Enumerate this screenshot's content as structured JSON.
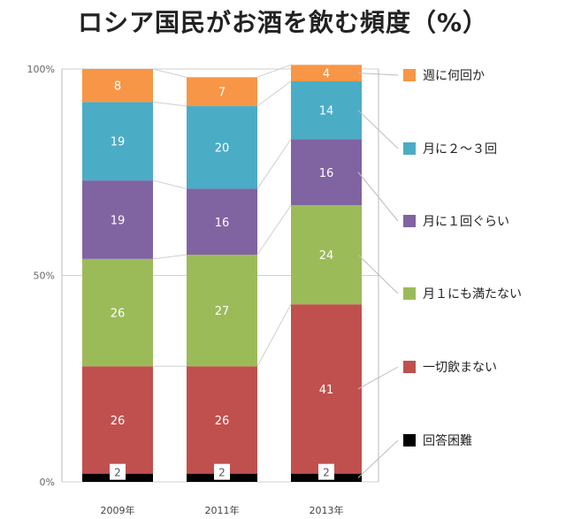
{
  "chart_data": {
    "type": "bar",
    "stacked": true,
    "title": "ロシア国民がお酒を飲む頻度（%）",
    "categories": [
      "2009年",
      "2011年",
      "2013年"
    ],
    "y_ticks": [
      "0%",
      "50%",
      "100%"
    ],
    "ylim": [
      0,
      100
    ],
    "legend_position": "right",
    "series": [
      {
        "name": "回答困難",
        "color": "#000000",
        "values": [
          2,
          2,
          2
        ]
      },
      {
        "name": "一切飲まない",
        "color": "#c0504d",
        "values": [
          26,
          26,
          41
        ]
      },
      {
        "name": "月１にも満たない",
        "color": "#9bbb59",
        "values": [
          26,
          27,
          24
        ]
      },
      {
        "name": "月に１回ぐらい",
        "color": "#8064a2",
        "values": [
          19,
          16,
          16
        ]
      },
      {
        "name": "月に２～３回",
        "color": "#4bacc6",
        "values": [
          19,
          20,
          14
        ]
      },
      {
        "name": "週に何回か",
        "color": "#f79646",
        "values": [
          8,
          7,
          4
        ]
      }
    ]
  }
}
